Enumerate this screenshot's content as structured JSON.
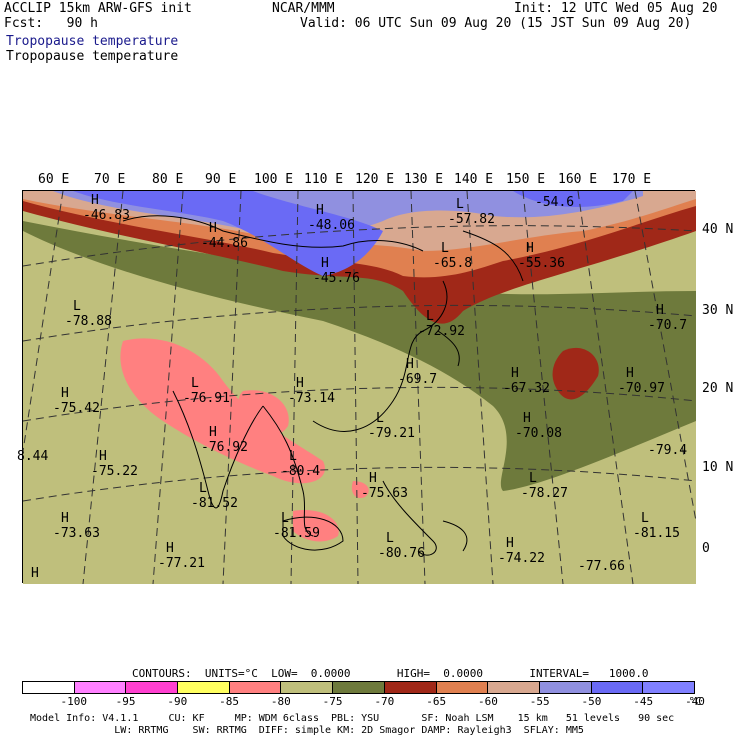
{
  "header": {
    "model_line": "ACCLIP 15km ARW-GFS init",
    "fcst_line": "Fcst:   90 h",
    "center": "NCAR/MMM",
    "init": "Init: 12 UTC Wed 05 Aug 20",
    "valid": "Valid: 06 UTC Sun 09 Aug 20 (15 JST Sun 09 Aug 20)",
    "field_title_1": "Tropopause temperature",
    "field_title_2": "Tropopause temperature"
  },
  "map": {
    "lon_labels": [
      "60 E",
      "70 E",
      "80 E",
      "90 E",
      "100 E",
      "110 E",
      "120 E",
      "130 E",
      "140 E",
      "150 E",
      "160 E",
      "170 E"
    ],
    "lat_labels": [
      "40 N",
      "30 N",
      "20 N",
      "10 N",
      "0"
    ],
    "extrema": [
      {
        "type": "H",
        "value": "-46.83"
      },
      {
        "type": "H",
        "value": "-48.06"
      },
      {
        "type": "L",
        "value": "-57.82"
      },
      {
        "type": "",
        "value": "-54.6"
      },
      {
        "type": "H",
        "value": "-44.86"
      },
      {
        "type": "H",
        "value": "-45.76"
      },
      {
        "type": "L",
        "value": "-65.8"
      },
      {
        "type": "H",
        "value": "-55.36"
      },
      {
        "type": "L",
        "value": "-78.88"
      },
      {
        "type": "L",
        "value": "-72.92"
      },
      {
        "type": "H",
        "value": "-70.7"
      },
      {
        "type": "H",
        "value": "-69.7"
      },
      {
        "type": "H",
        "value": "-67.32"
      },
      {
        "type": "H",
        "value": "-70.97"
      },
      {
        "type": "H",
        "value": "-75.42"
      },
      {
        "type": "L",
        "value": "-76.91"
      },
      {
        "type": "H",
        "value": "-73.14"
      },
      {
        "type": "L",
        "value": "-79.21"
      },
      {
        "type": "H",
        "value": "-70.08"
      },
      {
        "type": "H",
        "value": "-76.92"
      },
      {
        "type": "",
        "value": "8.44"
      },
      {
        "type": "H",
        "value": "-75.22"
      },
      {
        "type": "L",
        "value": "-80.4"
      },
      {
        "type": "",
        "value": "-79.4"
      },
      {
        "type": "L",
        "value": "-81.52"
      },
      {
        "type": "H",
        "value": "-75.63"
      },
      {
        "type": "L",
        "value": "-78.27"
      },
      {
        "type": "H",
        "value": "-73.63"
      },
      {
        "type": "L",
        "value": "-81.59"
      },
      {
        "type": "L",
        "value": "-80.76"
      },
      {
        "type": "H",
        "value": "-74.22"
      },
      {
        "type": "L",
        "value": "-81.15"
      },
      {
        "type": "H",
        "value": "-77.21"
      },
      {
        "type": "H",
        "value": ""
      },
      {
        "type": "",
        "value": "-77.66"
      }
    ]
  },
  "contours_line": "CONTOURS:  UNITS=°C  LOW=  0.0000       HIGH=  0.0000       INTERVAL=   1000.0",
  "colorbar": {
    "labels": [
      "-100",
      "-95",
      "-90",
      "-85",
      "-80",
      "-75",
      "-70",
      "-65",
      "-60",
      "-55",
      "-50",
      "-45",
      "-40",
      "°C"
    ],
    "colors": [
      "#ffffff",
      "#ff80ff",
      "#ff40d0",
      "#ffff60",
      "#ff8080",
      "#bfbf7c",
      "#6e7a3c",
      "#a02818",
      "#e08050",
      "#d8a890",
      "#9090e0",
      "#6a6af5",
      "#8080ff"
    ]
  },
  "footer": {
    "line1": "Model Info: V4.1.1     CU: KF     MP: WDM 6class  PBL: YSU       SF: Noah LSM    15 km   51 levels   90 sec",
    "line2": "              LW: RRTMG    SW: RRTMG  DIFF: simple KM: 2D Smagor DAMP: Rayleigh3  SFLAY: MM5"
  }
}
